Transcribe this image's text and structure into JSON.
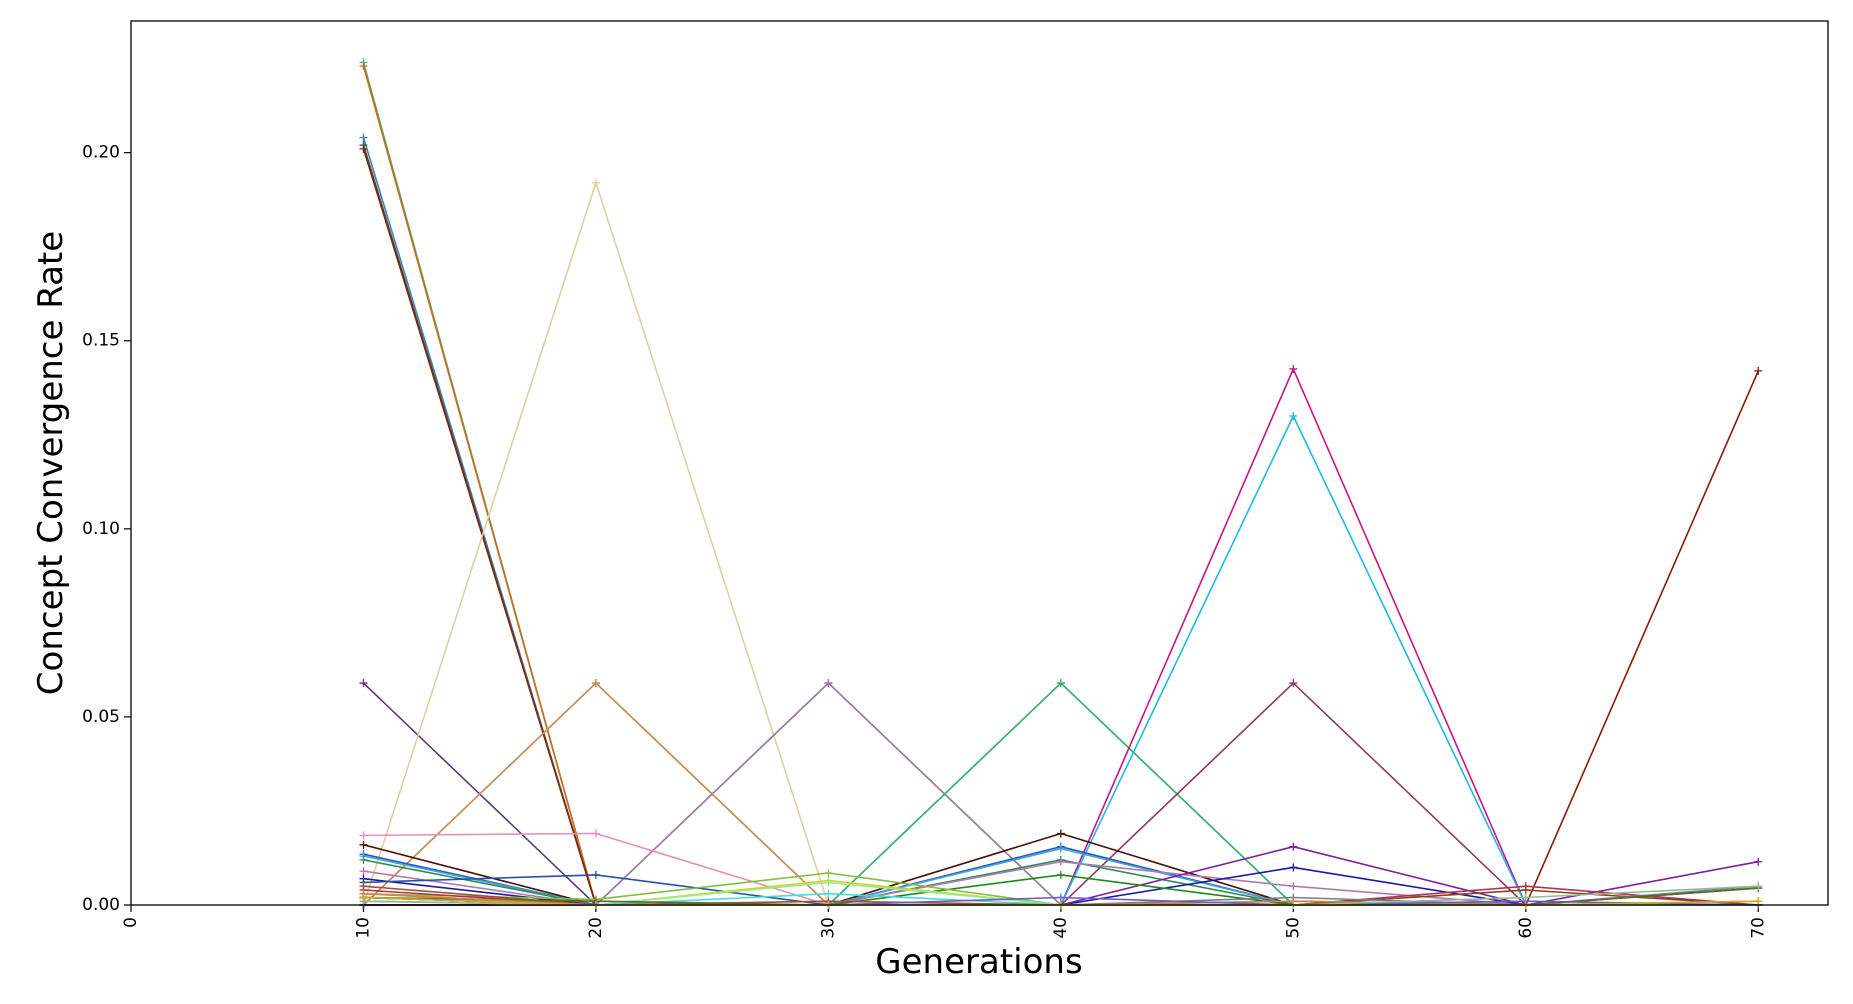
{
  "chart_data": {
    "type": "line",
    "title": "",
    "xlabel": "Generations",
    "ylabel": "Concept Convergence Rate",
    "xlim": [
      0,
      73
    ],
    "ylim": [
      0,
      0.235
    ],
    "x_ticks": [
      0,
      10,
      20,
      30,
      40,
      50,
      60,
      70
    ],
    "x_tick_labels": [
      "0",
      "10",
      "20",
      "30",
      "40",
      "50",
      "60",
      "70"
    ],
    "y_ticks": [
      0.0,
      0.05,
      0.1,
      0.15,
      0.2
    ],
    "y_tick_labels": [
      "0.00",
      "0.05",
      "0.10",
      "0.15",
      "0.20"
    ],
    "grid": false,
    "legend": "none",
    "marker": "+",
    "x": [
      10,
      20,
      30,
      40,
      50,
      60,
      70
    ],
    "series": [
      {
        "color": "#3cb371",
        "values": [
          0.224,
          0.0,
          0.0,
          0.0,
          0.0,
          0.0,
          0.0
        ]
      },
      {
        "color": "#d2691e",
        "values": [
          0.223,
          0.0,
          0.0,
          0.0,
          0.0,
          0.0,
          0.0
        ]
      },
      {
        "color": "#4682b4",
        "values": [
          0.204,
          0.0,
          0.0,
          0.0,
          0.0,
          0.0,
          0.0
        ]
      },
      {
        "color": "#2f4f4f",
        "values": [
          0.202,
          0.0,
          0.0,
          0.0,
          0.0,
          0.0,
          0.0
        ]
      },
      {
        "color": "#8b2500",
        "values": [
          0.201,
          0.0,
          0.0,
          0.0,
          0.0,
          0.0,
          0.0
        ]
      },
      {
        "color": "#5a3a7a",
        "values": [
          0.059,
          0.0,
          0.0,
          0.0,
          0.0,
          0.0,
          0.0
        ]
      },
      {
        "color": "#e0cfa0",
        "values": [
          0.0,
          0.192,
          0.0,
          0.0,
          0.0,
          0.0,
          0.0
        ]
      },
      {
        "color": "#e8a33d",
        "values": [
          0.0,
          0.059,
          0.0,
          0.0,
          0.0,
          0.0,
          0.0
        ]
      },
      {
        "color": "#c98a5a",
        "values": [
          0.0,
          0.059,
          0.0,
          0.0,
          0.0,
          0.0,
          0.0
        ]
      },
      {
        "color": "#b5606e",
        "values": [
          0.0,
          0.0,
          0.059,
          0.0,
          0.0,
          0.0,
          0.0
        ]
      },
      {
        "color": "#9a7fa0",
        "values": [
          0.0,
          0.0,
          0.059,
          0.0,
          0.0,
          0.0,
          0.0
        ]
      },
      {
        "color": "#20b2aa",
        "values": [
          0.0,
          0.0,
          0.0,
          0.059,
          0.0,
          0.0,
          0.0
        ]
      },
      {
        "color": "#3cb371",
        "values": [
          0.0,
          0.0,
          0.0,
          0.059,
          0.0,
          0.0,
          0.0
        ]
      },
      {
        "color": "#c71585",
        "values": [
          0.0,
          0.0,
          0.0,
          0.0,
          0.1425,
          0.0,
          0.0
        ]
      },
      {
        "color": "#1fb8e8",
        "values": [
          0.0,
          0.0,
          0.0,
          0.0,
          0.13,
          0.0,
          0.0
        ]
      },
      {
        "color": "#8b3a62",
        "values": [
          0.0,
          0.0,
          0.0,
          0.0,
          0.059,
          0.0,
          0.0
        ]
      },
      {
        "color": "#8b1a00",
        "values": [
          0.0,
          0.0,
          0.0,
          0.0,
          0.0,
          0.0,
          0.142
        ]
      },
      {
        "color": "#e88fb8",
        "values": [
          0.0185,
          0.019,
          0.0,
          0.0,
          0.0,
          0.0,
          0.0
        ]
      },
      {
        "color": "#4a1000",
        "values": [
          0.016,
          0.0,
          0.0,
          0.019,
          0.0,
          0.0,
          0.0
        ]
      },
      {
        "color": "#1e60c8",
        "values": [
          0.0135,
          0.0,
          0.0,
          0.0155,
          0.0,
          0.0,
          0.0
        ]
      },
      {
        "color": "#4aa0d0",
        "values": [
          0.013,
          0.0,
          0.0,
          0.015,
          0.0,
          0.0,
          0.0
        ]
      },
      {
        "color": "#2e8b57",
        "values": [
          0.012,
          0.0,
          0.0,
          0.012,
          0.0,
          0.0,
          0.0
        ]
      },
      {
        "color": "#b07ab0",
        "values": [
          0.009,
          0.0,
          0.0,
          0.0115,
          0.005,
          0.0,
          0.0
        ]
      },
      {
        "color": "#1a1aa8",
        "values": [
          0.007,
          0.0,
          0.0,
          0.0,
          0.01,
          0.0,
          0.0
        ]
      },
      {
        "color": "#2850a8",
        "values": [
          0.006,
          0.008,
          0.0,
          0.0,
          0.0,
          0.0,
          0.0
        ]
      },
      {
        "color": "#7b1fa2",
        "values": [
          0.0,
          0.0,
          0.0,
          0.0,
          0.0155,
          0.0,
          0.0115
        ]
      },
      {
        "color": "#1b8a1b",
        "values": [
          0.002,
          0.0,
          0.0,
          0.008,
          0.0,
          0.0,
          0.0
        ]
      },
      {
        "color": "#7fbf3f",
        "values": [
          0.003,
          0.0015,
          0.0085,
          0.0,
          0.0,
          0.0,
          0.0
        ]
      },
      {
        "color": "#d8d020",
        "values": [
          0.003,
          0.0,
          0.0065,
          0.0,
          0.0,
          0.0,
          0.0
        ]
      },
      {
        "color": "#90ee90",
        "values": [
          0.001,
          0.0,
          0.006,
          0.0,
          0.0,
          0.0,
          0.0
        ]
      },
      {
        "color": "#40e0d0",
        "values": [
          0.001,
          0.0,
          0.003,
          0.0,
          0.0,
          0.0,
          0.0
        ]
      },
      {
        "color": "#b03060",
        "values": [
          0.004,
          0.0,
          0.0,
          0.0,
          0.0,
          0.005,
          0.0
        ]
      },
      {
        "color": "#8b4513",
        "values": [
          0.002,
          0.0,
          0.0,
          0.0,
          0.0,
          0.004,
          0.0
        ]
      },
      {
        "color": "#708090",
        "values": [
          0.002,
          0.0,
          0.0,
          0.0,
          0.002,
          0.0,
          0.005
        ]
      },
      {
        "color": "#a0522d",
        "values": [
          0.005,
          0.0,
          0.001,
          0.0,
          0.001,
          0.0,
          0.0045
        ]
      },
      {
        "color": "#556b2f",
        "values": [
          0.002,
          0.001,
          0.0,
          0.0,
          0.0,
          0.0,
          0.0045
        ]
      },
      {
        "color": "#cd853f",
        "values": [
          0.003,
          0.0,
          0.0,
          0.0,
          0.001,
          0.0,
          0.001
        ]
      },
      {
        "color": "#6a5acd",
        "values": [
          0.002,
          0.0,
          0.0,
          0.002,
          0.0,
          0.001,
          0.0
        ]
      },
      {
        "color": "#8fbc8f",
        "values": [
          0.001,
          0.0,
          0.0,
          0.0,
          0.0,
          0.002,
          0.005
        ]
      },
      {
        "color": "#daa520",
        "values": [
          0.002,
          0.0,
          0.0,
          0.0,
          0.0,
          0.0,
          0.001
        ]
      }
    ]
  }
}
